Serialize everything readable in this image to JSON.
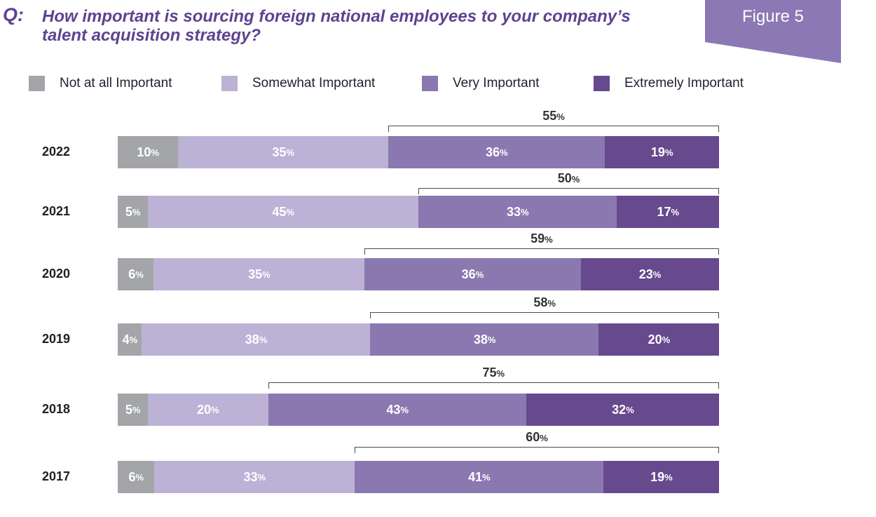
{
  "header": {
    "q_prefix": "Q:",
    "question": "How important is sourcing foreign national employees to your company’s talent acquisition strategy?",
    "figure_label": "Figure 5"
  },
  "colors": {
    "title": "#5e4390",
    "figure_tab": "#8b78b4",
    "not_at_all": "#a3a5a8",
    "somewhat": "#bcb2d6",
    "very": "#8b78b0",
    "extremely": "#67498e"
  },
  "chart_data": {
    "type": "bar",
    "orientation": "horizontal",
    "stacked": true,
    "title": "How important is sourcing foreign national employees to your company’s talent acquisition strategy?",
    "xlabel": "",
    "ylabel": "",
    "legend_position": "top",
    "categories": [
      "2022",
      "2021",
      "2020",
      "2019",
      "2018",
      "2017"
    ],
    "series": [
      {
        "name": "Not at all Important",
        "color_key": "not_at_all",
        "values": [
          10,
          5,
          6,
          4,
          5,
          6
        ]
      },
      {
        "name": "Somewhat Important",
        "color_key": "somewhat",
        "values": [
          35,
          45,
          35,
          38,
          20,
          33
        ]
      },
      {
        "name": "Very Important",
        "color_key": "very",
        "values": [
          36,
          33,
          36,
          38,
          43,
          41
        ]
      },
      {
        "name": "Extremely Important",
        "color_key": "extremely",
        "values": [
          19,
          17,
          23,
          20,
          32,
          19
        ]
      }
    ],
    "bracket_totals": {
      "description_series": [
        "Very Important",
        "Extremely Important"
      ],
      "values": [
        55,
        50,
        59,
        58,
        75,
        60
      ]
    },
    "value_suffix": "%"
  }
}
